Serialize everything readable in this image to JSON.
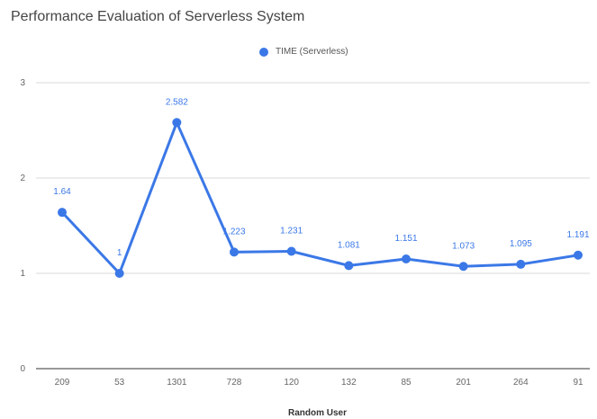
{
  "chart_data": {
    "type": "line",
    "title": "Performance Evaluation of Serverless System",
    "xlabel": "Random User",
    "ylabel": "",
    "categories": [
      "209",
      "53",
      "1301",
      "728",
      "120",
      "132",
      "85",
      "201",
      "264",
      "91"
    ],
    "series": [
      {
        "name": "TIME (Serverless)",
        "values": [
          1.64,
          1,
          2.582,
          1.223,
          1.231,
          1.081,
          1.151,
          1.073,
          1.095,
          1.191
        ],
        "labels": [
          "1.64",
          "1",
          "2.582",
          "1.223",
          "1.231",
          "1.081",
          "1.151",
          "1.073",
          "1.095",
          "1.191"
        ],
        "color": "#3b78e7"
      }
    ],
    "ylim": [
      0,
      3
    ],
    "yticks": [
      "0",
      "1",
      "2",
      "3"
    ],
    "grid": true,
    "legend": "top-center"
  }
}
